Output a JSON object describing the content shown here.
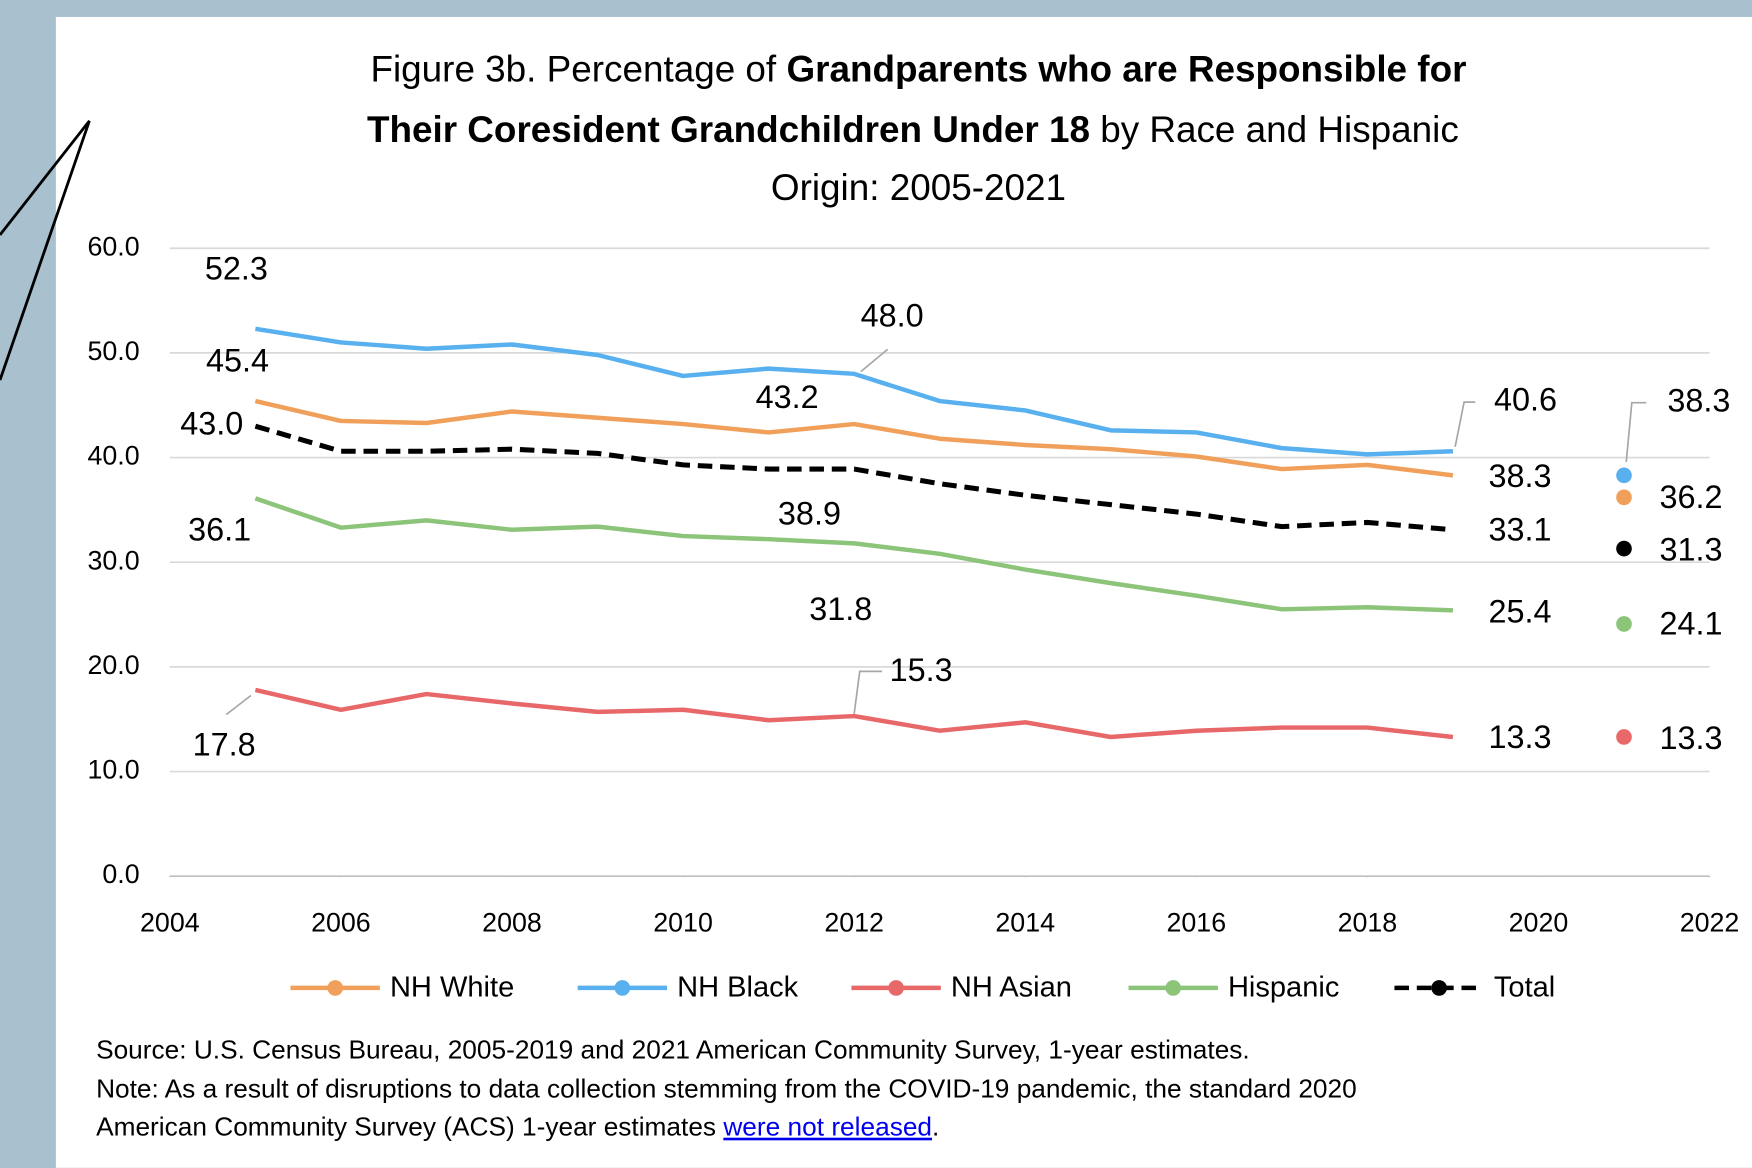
{
  "chart_data": {
    "type": "line",
    "title_parts": [
      "Figure 3b. Percentage of",
      "Grandparents who are Responsible for",
      "Their Coresident Grandchildren Under 18",
      "by Race and Hispanic",
      "Origin: 2005-2021"
    ],
    "x": [
      2005,
      2006,
      2007,
      2008,
      2009,
      2010,
      2011,
      2012,
      2013,
      2014,
      2015,
      2016,
      2017,
      2018,
      2019,
      2020,
      2021
    ],
    "xlim": [
      2004,
      2022
    ],
    "xticks": [
      2004,
      2006,
      2008,
      2010,
      2012,
      2014,
      2016,
      2018,
      2020,
      2022
    ],
    "ylim": [
      0,
      60
    ],
    "yticks": [
      {
        "value": 0,
        "label": "0.0"
      },
      {
        "value": 10,
        "label": "10.0"
      },
      {
        "value": 20,
        "label": "20.0"
      },
      {
        "value": 30,
        "label": "30.0"
      },
      {
        "value": 40,
        "label": "40.0"
      },
      {
        "value": 50,
        "label": "50.0"
      },
      {
        "value": 60,
        "label": "60.0"
      }
    ],
    "grid": true,
    "legend": "bottom",
    "series": [
      {
        "name": "NH White",
        "color": "#f0a05a",
        "dash": false,
        "values": [
          45.4,
          43.5,
          43.3,
          44.4,
          43.8,
          43.2,
          42.4,
          43.2,
          41.8,
          41.2,
          40.8,
          40.1,
          38.9,
          39.3,
          38.3,
          null,
          36.2
        ],
        "value_labels": [
          "45.4",
          null,
          null,
          null,
          null,
          null,
          null,
          "43.2",
          null,
          null,
          null,
          null,
          null,
          null,
          "38.3",
          null,
          "36.2"
        ]
      },
      {
        "name": "NH Black",
        "color": "#58b0ef",
        "dash": false,
        "values": [
          52.3,
          51.0,
          50.4,
          50.8,
          49.8,
          47.8,
          48.5,
          48.0,
          45.4,
          44.5,
          42.6,
          42.4,
          40.9,
          40.3,
          40.6,
          null,
          38.3
        ],
        "value_labels": [
          "52.3",
          null,
          null,
          null,
          null,
          null,
          null,
          "48.0",
          null,
          null,
          null,
          null,
          null,
          null,
          "40.6",
          null,
          "38.3"
        ]
      },
      {
        "name": "NH Asian",
        "color": "#e8686a",
        "dash": false,
        "values": [
          17.8,
          15.9,
          17.4,
          16.5,
          15.7,
          15.9,
          14.9,
          15.3,
          13.9,
          14.7,
          13.3,
          13.9,
          14.2,
          14.2,
          13.3,
          null,
          13.3
        ],
        "value_labels": [
          "17.8",
          null,
          null,
          null,
          null,
          null,
          null,
          "15.3",
          null,
          null,
          null,
          null,
          null,
          null,
          "13.3",
          null,
          "13.3"
        ]
      },
      {
        "name": "Hispanic",
        "color": "#8cc47a",
        "dash": false,
        "values": [
          36.1,
          33.3,
          34.0,
          33.1,
          33.4,
          32.5,
          32.2,
          31.8,
          30.8,
          29.3,
          28.0,
          26.8,
          25.5,
          25.7,
          25.4,
          null,
          24.1
        ],
        "value_labels": [
          "36.1",
          null,
          null,
          null,
          null,
          null,
          null,
          "31.8",
          null,
          null,
          null,
          null,
          null,
          null,
          "25.4",
          null,
          "24.1"
        ]
      },
      {
        "name": "Total",
        "color": "#000000",
        "dash": true,
        "values": [
          43.0,
          40.6,
          40.6,
          40.8,
          40.4,
          39.3,
          38.9,
          38.9,
          37.5,
          36.4,
          35.5,
          34.6,
          33.4,
          33.8,
          33.1,
          null,
          31.3
        ],
        "value_labels": [
          "43.0",
          null,
          null,
          null,
          null,
          null,
          null,
          "38.9",
          null,
          null,
          null,
          null,
          null,
          null,
          "33.1",
          null,
          "31.3"
        ]
      }
    ],
    "source": "Source: U.S. Census Bureau, 2005-2019 and 2021 American Community Survey, 1-year estimates.",
    "note": "Note: As a result of disruptions to data collection stemming from the COVID-19 pandemic, the standard 2020",
    "note_line2": "American Community Survey (ACS) 1-year estimates",
    "note_link": "were not released",
    "note_end": "."
  }
}
